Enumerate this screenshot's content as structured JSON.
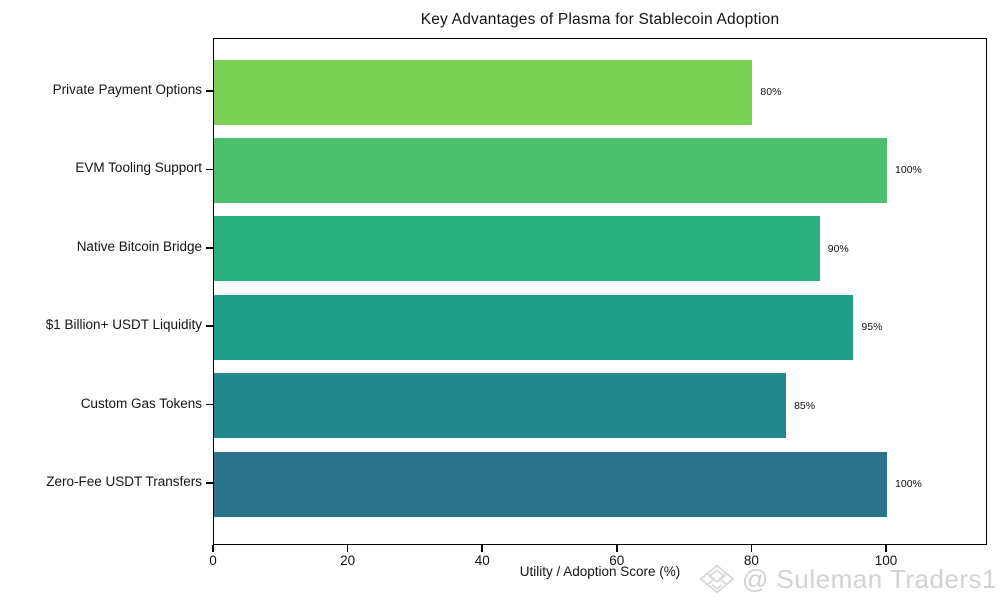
{
  "chart_data": {
    "type": "bar",
    "orientation": "horizontal",
    "title": "Key Advantages of Plasma for Stablecoin Adoption",
    "xlabel": "Utility / Adoption Score (%)",
    "ylabel": "",
    "categories": [
      "Private Payment Options",
      "EVM Tooling Support",
      "Native Bitcoin Bridge",
      "$1 Billion+ USDT Liquidity",
      "Custom Gas Tokens",
      "Zero-Fee USDT Transfers"
    ],
    "values": [
      80,
      100,
      90,
      95,
      85,
      100
    ],
    "value_labels": [
      "80%",
      "100%",
      "90%",
      "95%",
      "85%",
      "100%"
    ],
    "bar_colors": [
      "#7ad151",
      "#4cc16d",
      "#2ab07f",
      "#1f9e89",
      "#23888e",
      "#2b748e"
    ],
    "xlim": [
      0,
      115
    ],
    "xticks": [
      0,
      20,
      40,
      60,
      80,
      100
    ],
    "grid": false,
    "legend_position": "none",
    "text_color": "#141414",
    "axis_color": "#000000",
    "background_color": "#ffffff"
  },
  "watermark": {
    "text": "@ Suleman Traders1",
    "icon": "diamond-gem-icon",
    "color": "#d2d2d2"
  }
}
